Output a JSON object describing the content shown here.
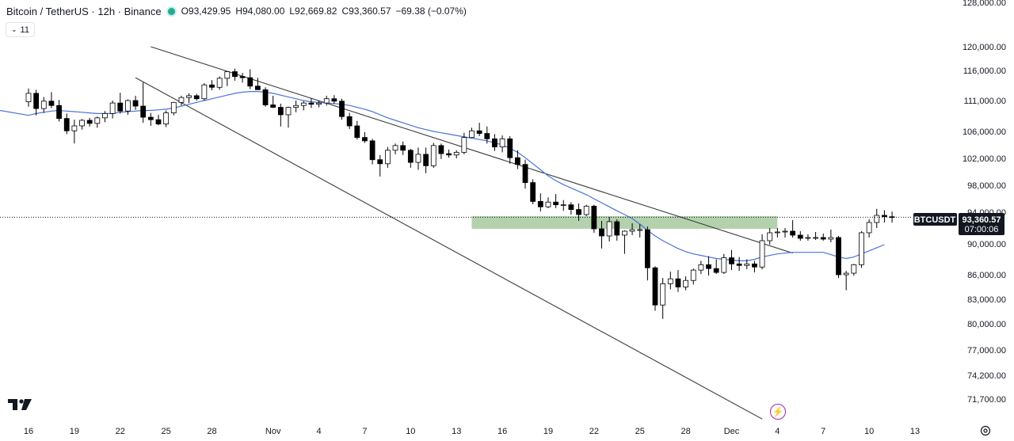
{
  "header": {
    "symbol_title": "Bitcoin / TetherUS · 12h · Binance",
    "open": "O93,429.95",
    "high": "H94,080.00",
    "low": "L92,669.82",
    "close": "C93,360.57",
    "change": "−69.38 (−0.07%)",
    "indicators_count": "11"
  },
  "price_tag": {
    "symbol": "BTCUSDT",
    "price": "93,360.57",
    "countdown": "07:00:06"
  },
  "colors": {
    "up_body": "#ffffff",
    "down_body": "#000000",
    "candle_outline": "#000000",
    "ma_line": "#4a74d8",
    "trendline": "#3c3c3c",
    "zone": "#a7c9a0"
  },
  "chart_data": {
    "type": "candlestick",
    "interval": "12h",
    "y_ticks": [
      128000,
      120000,
      116000,
      111000,
      106000,
      102000,
      98000,
      94000,
      90000,
      86000,
      83000,
      80000,
      77000,
      74200,
      71700
    ],
    "y_tick_labels": [
      "128,000.00",
      "120,000.00",
      "116,000.00",
      "111,000.00",
      "106,000.00",
      "102,000.00",
      "98,000.00",
      "94,000.00",
      "90,000.00",
      "86,000.00",
      "83,000.00",
      "80,000.00",
      "77,000.00",
      "74,200.00",
      "71,700.00"
    ],
    "x_labels": [
      "16",
      "19",
      "22",
      "25",
      "28",
      "Nov",
      "4",
      "7",
      "10",
      "13",
      "16",
      "19",
      "22",
      "25",
      "28",
      "Dec",
      "4",
      "7",
      "10",
      "13"
    ],
    "x_label_dates": [
      "Oct 16",
      "Oct 19",
      "Oct 22",
      "Oct 25",
      "Oct 28",
      "Nov 1",
      "Nov 4",
      "Nov 7",
      "Nov 10",
      "Nov 13",
      "Nov 16",
      "Nov 19",
      "Nov 22",
      "Nov 25",
      "Nov 28",
      "Dec 1",
      "Dec 4",
      "Dec 7",
      "Dec 10",
      "Dec 13"
    ],
    "start_date": "Oct 16",
    "last_price": 93360.57,
    "candles": [
      [
        110800,
        113000,
        110000,
        112200
      ],
      [
        112200,
        112800,
        108600,
        109700
      ],
      [
        109700,
        111600,
        109000,
        110900
      ],
      [
        110900,
        112400,
        109800,
        110200
      ],
      [
        110200,
        111100,
        107600,
        108100
      ],
      [
        108100,
        108900,
        105600,
        106100
      ],
      [
        106100,
        107900,
        104200,
        106900
      ],
      [
        106900,
        108000,
        106300,
        107800
      ],
      [
        107800,
        108200,
        106800,
        107300
      ],
      [
        107300,
        108400,
        106600,
        108200
      ],
      [
        108200,
        109300,
        107500,
        108900
      ],
      [
        108900,
        111000,
        108100,
        110600
      ],
      [
        110600,
        112300,
        108900,
        109300
      ],
      [
        109300,
        111200,
        108700,
        111000
      ],
      [
        111000,
        111800,
        109500,
        110100
      ],
      [
        110100,
        114000,
        107400,
        108300
      ],
      [
        108300,
        109000,
        106900,
        107900
      ],
      [
        107900,
        108700,
        107000,
        107200
      ],
      [
        107200,
        109400,
        106700,
        109000
      ],
      [
        109000,
        110800,
        108600,
        110700
      ],
      [
        110700,
        111800,
        110200,
        111500
      ],
      [
        111500,
        112200,
        110600,
        111800
      ],
      [
        111800,
        112100,
        111000,
        111300
      ],
      [
        111300,
        113900,
        111000,
        113600
      ],
      [
        113600,
        114400,
        112700,
        113200
      ],
      [
        113200,
        115000,
        112800,
        114700
      ],
      [
        114700,
        115800,
        113400,
        115800
      ],
      [
        115800,
        116300,
        114300,
        115000
      ],
      [
        115000,
        115600,
        114000,
        114800
      ],
      [
        114800,
        116200,
        112900,
        113400
      ],
      [
        113400,
        114800,
        112900,
        112800
      ],
      [
        112800,
        113200,
        110000,
        110300
      ],
      [
        110300,
        111800,
        109800,
        109900
      ],
      [
        109900,
        110500,
        106800,
        108700
      ],
      [
        108700,
        110000,
        106600,
        109900
      ],
      [
        109900,
        111000,
        109100,
        110200
      ],
      [
        110200,
        110900,
        109400,
        110600
      ],
      [
        110600,
        111400,
        109800,
        110400
      ],
      [
        110400,
        111000,
        109900,
        110600
      ],
      [
        110600,
        111800,
        110200,
        111300
      ],
      [
        111300,
        111900,
        110500,
        110900
      ],
      [
        110900,
        111300,
        107900,
        108400
      ],
      [
        108400,
        109000,
        106400,
        106900
      ],
      [
        106900,
        107700,
        104800,
        105100
      ],
      [
        105100,
        105900,
        104300,
        104600
      ],
      [
        104600,
        104900,
        101100,
        101800
      ],
      [
        101800,
        102500,
        99300,
        101200
      ],
      [
        101200,
        103700,
        100600,
        103200
      ],
      [
        103200,
        104200,
        102600,
        103900
      ],
      [
        103900,
        104500,
        102500,
        103200
      ],
      [
        103200,
        103400,
        100600,
        101400
      ],
      [
        101400,
        103600,
        100300,
        102600
      ],
      [
        102600,
        103600,
        99800,
        100900
      ],
      [
        100900,
        104300,
        100600,
        103900
      ],
      [
        103900,
        104200,
        101900,
        102700
      ],
      [
        102700,
        103300,
        102100,
        102500
      ],
      [
        102500,
        103200,
        102000,
        102900
      ],
      [
        102900,
        105800,
        102600,
        105100
      ],
      [
        105100,
        106600,
        105100,
        106100
      ],
      [
        106100,
        107400,
        105300,
        105700
      ],
      [
        105700,
        106800,
        104200,
        104900
      ],
      [
        104900,
        105600,
        103100,
        103700
      ],
      [
        103700,
        105400,
        102900,
        104900
      ],
      [
        104900,
        105300,
        101200,
        102100
      ],
      [
        102100,
        103200,
        100400,
        101100
      ],
      [
        101100,
        101800,
        97500,
        98400
      ],
      [
        98400,
        98900,
        95200,
        95600
      ],
      [
        95600,
        96800,
        94100,
        94800
      ],
      [
        94800,
        96200,
        94600,
        95500
      ],
      [
        95500,
        96700,
        94600,
        95100
      ],
      [
        95100,
        95800,
        94200,
        95100
      ],
      [
        95100,
        95500,
        93700,
        94400
      ],
      [
        94400,
        95300,
        92900,
        93700
      ],
      [
        93700,
        95100,
        93500,
        94900
      ],
      [
        94900,
        95100,
        91400,
        91900
      ],
      [
        91900,
        92900,
        89400,
        91000
      ],
      [
        91000,
        93400,
        90300,
        92800
      ],
      [
        92800,
        93100,
        90400,
        91100
      ],
      [
        91100,
        91700,
        88700,
        91600
      ],
      [
        91600,
        92600,
        91100,
        91800
      ],
      [
        91800,
        92500,
        90800,
        91800
      ],
      [
        91800,
        92200,
        85300,
        86900
      ],
      [
        86900,
        87100,
        81600,
        82300
      ],
      [
        82300,
        85600,
        80600,
        84900
      ],
      [
        84900,
        86400,
        84200,
        85500
      ],
      [
        85500,
        86600,
        83900,
        84500
      ],
      [
        84500,
        85800,
        84100,
        85300
      ],
      [
        85300,
        86800,
        84800,
        86600
      ],
      [
        86600,
        87800,
        86100,
        87300
      ],
      [
        87300,
        88400,
        85900,
        86800
      ],
      [
        86800,
        88000,
        86100,
        86300
      ],
      [
        86300,
        88700,
        86100,
        88200
      ],
      [
        88200,
        89200,
        86600,
        87400
      ],
      [
        87400,
        88300,
        86500,
        87200
      ],
      [
        87200,
        88000,
        86700,
        87400
      ],
      [
        87400,
        87800,
        86300,
        87000
      ],
      [
        87000,
        91200,
        86700,
        90400
      ],
      [
        90400,
        92000,
        89900,
        91400
      ],
      [
        91400,
        92000,
        90800,
        91500
      ],
      [
        91500,
        92000,
        90800,
        91600
      ],
      [
        91600,
        93000,
        90800,
        91100
      ],
      [
        91100,
        91600,
        90400,
        90700
      ],
      [
        90700,
        91200,
        90400,
        90800
      ],
      [
        90800,
        91500,
        90500,
        90800
      ],
      [
        90800,
        91300,
        90400,
        90600
      ],
      [
        90600,
        91800,
        90200,
        90800
      ],
      [
        90800,
        91000,
        85600,
        86000
      ],
      [
        86000,
        86500,
        84100,
        86200
      ],
      [
        86200,
        87400,
        85900,
        87300
      ],
      [
        87300,
        91600,
        86900,
        91400
      ],
      [
        91400,
        93100,
        90800,
        92700
      ],
      [
        92700,
        94500,
        92000,
        93600
      ],
      [
        93600,
        94300,
        92700,
        93430
      ],
      [
        93429.95,
        94080,
        92669.82,
        93360.57
      ]
    ],
    "moving_average": [
      108600,
      108900,
      109100,
      109300,
      109400,
      109300,
      109200,
      109100,
      109000,
      108900,
      108900,
      108900,
      109100,
      109200,
      109300,
      109400,
      109400,
      109500,
      109600,
      109800,
      110100,
      110400,
      110700,
      111000,
      111300,
      111600,
      111900,
      112200,
      112400,
      112500,
      112500,
      112400,
      112200,
      111900,
      111600,
      111300,
      111000,
      110800,
      110700,
      110600,
      110500,
      110400,
      110200,
      109900,
      109600,
      109200,
      108700,
      108200,
      107800,
      107400,
      107000,
      106600,
      106300,
      106000,
      105800,
      105600,
      105400,
      105200,
      105000,
      104800,
      104600,
      104300,
      104000,
      103500,
      102900,
      102100,
      101200,
      100300,
      99400,
      98700,
      98100,
      97600,
      97100,
      96600,
      96000,
      95400,
      94800,
      94200,
      93700,
      93200,
      92500,
      91700,
      91000,
      90400,
      89900,
      89400,
      89000,
      88700,
      88500,
      88300,
      88100,
      88000,
      87900,
      87800,
      87800,
      88000,
      88300,
      88500,
      88700,
      88800,
      88900,
      88900,
      88900,
      88900,
      88900,
      88600,
      88300,
      88100,
      88300,
      88700,
      89100,
      89500,
      89900
    ],
    "trendlines": [
      {
        "from": [
          "Oct 24",
          120000
        ],
        "to": [
          "Dec 5",
          88800
        ]
      },
      {
        "from": [
          "Oct 23",
          114800
        ],
        "to": [
          "Dec 3",
          69600
        ]
      }
    ],
    "zone": {
      "from": "Nov 14",
      "to": "Dec 4",
      "y_low": 91900,
      "y_high": 93500
    }
  }
}
